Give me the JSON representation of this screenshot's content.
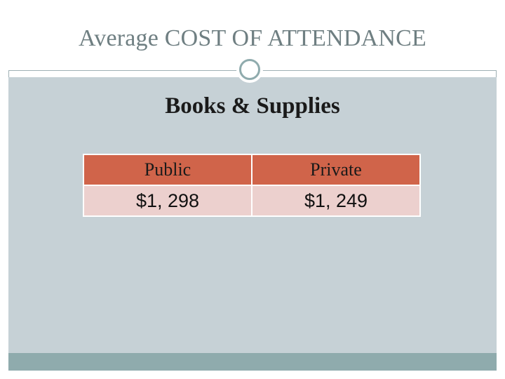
{
  "slide": {
    "title": "Average COST OF ATTENDANCE",
    "subheading": "Books & Supplies"
  },
  "table": {
    "headers": [
      "Public",
      "Private"
    ],
    "rows": [
      [
        "$1, 298",
        "$1, 249"
      ]
    ]
  },
  "colors": {
    "content_background": "#c6d1d6",
    "accent_teal": "#8fabad",
    "header_fill": "#d0644a",
    "cell_fill": "#ecd0ce",
    "title_text": "#6f7f82"
  }
}
